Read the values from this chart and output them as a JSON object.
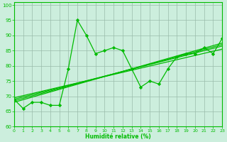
{
  "xlabel": "Humidité relative (%)",
  "background_color": "#cceedd",
  "grid_color": "#99bbaa",
  "line_color": "#00bb00",
  "xlim": [
    0,
    23
  ],
  "ylim": [
    60,
    101
  ],
  "yticks": [
    60,
    65,
    70,
    75,
    80,
    85,
    90,
    95,
    100
  ],
  "xticks": [
    0,
    1,
    2,
    3,
    4,
    5,
    6,
    7,
    8,
    9,
    10,
    11,
    12,
    13,
    14,
    15,
    16,
    17,
    18,
    19,
    20,
    21,
    22,
    23
  ],
  "main_data": [
    69,
    66,
    68,
    68,
    67,
    67,
    79,
    95,
    90,
    84,
    85,
    86,
    85,
    79,
    73,
    75,
    74,
    79,
    83,
    84,
    84,
    86,
    84,
    89
  ],
  "trend_starts": [
    69.5,
    69.0,
    68.5,
    68.0
  ],
  "trend_ends": [
    85.5,
    86.5,
    87.0,
    87.5
  ]
}
